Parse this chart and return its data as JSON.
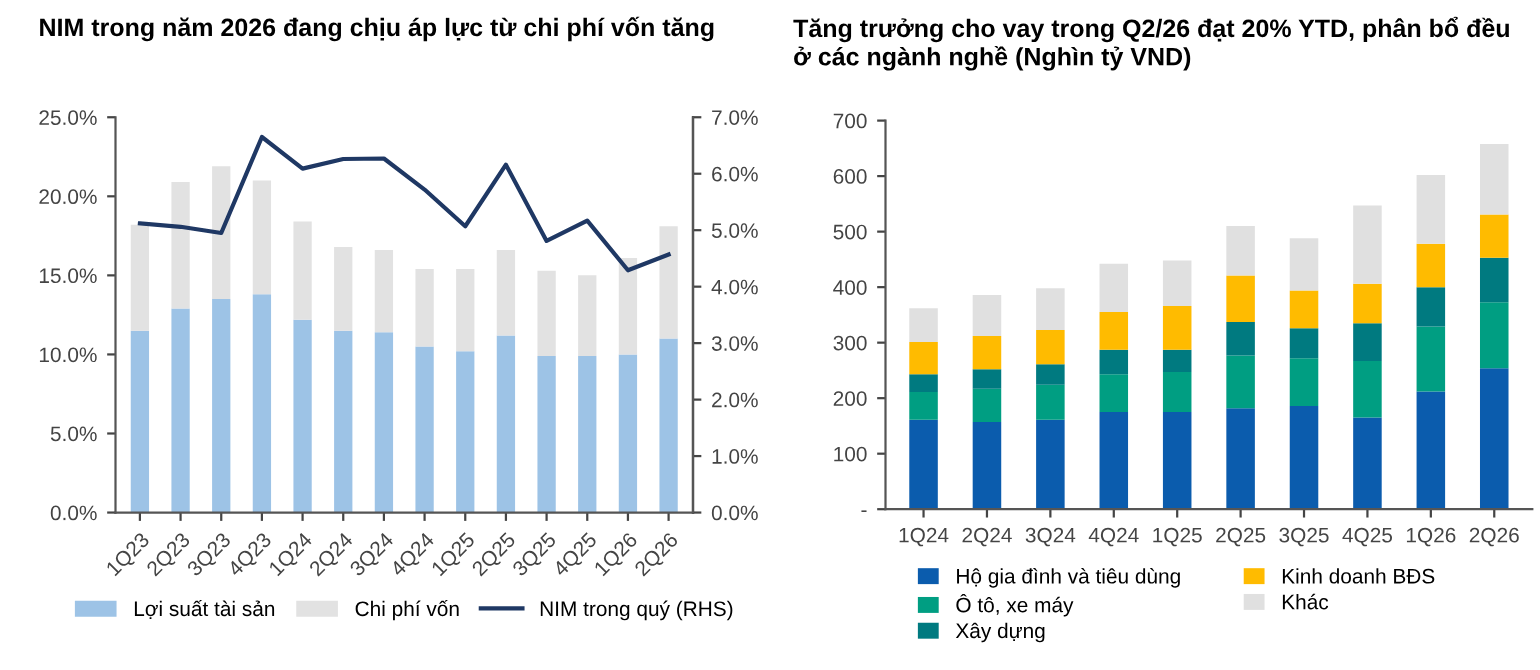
{
  "chart_data": [
    {
      "type": "bar",
      "title": "NIM trong năm 2026 đang chịu áp lực từ chi phí vốn tăng",
      "stacked": true,
      "categories": [
        "1Q23",
        "2Q23",
        "3Q23",
        "4Q23",
        "1Q24",
        "2Q24",
        "3Q24",
        "4Q24",
        "1Q25",
        "2Q25",
        "3Q25",
        "4Q25",
        "1Q26",
        "2Q26"
      ],
      "series": [
        {
          "name": "Lợi suất tài sản",
          "color": "#9dc3e6",
          "values": [
            11.5,
            12.9,
            13.5,
            13.8,
            12.2,
            11.5,
            11.4,
            10.5,
            10.2,
            11.2,
            9.9,
            9.9,
            10.0,
            11.0
          ]
        },
        {
          "name": "Chi phí vốn",
          "color": "#e2e2e2",
          "values": [
            6.7,
            8.0,
            8.4,
            7.2,
            6.2,
            5.3,
            5.2,
            4.9,
            5.2,
            5.4,
            5.4,
            5.1,
            6.1,
            7.1
          ]
        },
        {
          "name": "NIM trong quý (RHS)",
          "type": "line",
          "axis": "y2",
          "color": "#1f3864",
          "values": [
            5.12,
            5.06,
            4.95,
            6.65,
            6.09,
            6.26,
            6.27,
            5.72,
            5.07,
            6.16,
            4.81,
            5.17,
            4.29,
            4.57
          ]
        }
      ],
      "ylim": [
        0,
        25
      ],
      "yticks": [
        {
          "value": 0,
          "label": "0.0%"
        },
        {
          "value": 5,
          "label": "5.0%"
        },
        {
          "value": 10,
          "label": "10.0%"
        },
        {
          "value": 15,
          "label": "15.0%"
        },
        {
          "value": 20,
          "label": "20.0%"
        },
        {
          "value": 25,
          "label": "25.0%"
        }
      ],
      "y2lim": [
        0,
        7
      ],
      "y2ticks": [
        {
          "value": 0,
          "label": "0.0%"
        },
        {
          "value": 1,
          "label": "1.0%"
        },
        {
          "value": 2,
          "label": "2.0%"
        },
        {
          "value": 3,
          "label": "3.0%"
        },
        {
          "value": 4,
          "label": "4.0%"
        },
        {
          "value": 5,
          "label": "5.0%"
        },
        {
          "value": 6,
          "label": "6.0%"
        },
        {
          "value": 7,
          "label": "7.0%"
        }
      ],
      "legend": "bottom",
      "grid": false
    },
    {
      "type": "bar",
      "title": "Tăng trưởng cho vay trong Q2/26 đạt 20% YTD, phân bổ đều ở các ngành nghề (Nghìn tỷ VND)",
      "stacked": true,
      "categories": [
        "1Q24",
        "2Q24",
        "3Q24",
        "4Q24",
        "1Q25",
        "2Q25",
        "3Q25",
        "4Q25",
        "1Q26",
        "2Q26"
      ],
      "series": [
        {
          "name": "Hộ gia đình và tiêu dùng",
          "color": "#0b5cad",
          "values": [
            161,
            157,
            161,
            175,
            175,
            182,
            186,
            165,
            212,
            254
          ]
        },
        {
          "name": "Ô tô, xe máy",
          "color": "#009e82",
          "values": [
            50,
            60,
            63,
            68,
            72,
            95,
            86,
            102,
            117,
            119
          ]
        },
        {
          "name": "Xây dựng",
          "color": "#007a80",
          "values": [
            32,
            35,
            37,
            44,
            40,
            60,
            54,
            68,
            71,
            80
          ]
        },
        {
          "name": "Kinh doanh BĐS",
          "color": "#ffbb00",
          "values": [
            58,
            60,
            62,
            68,
            79,
            84,
            68,
            71,
            78,
            78
          ]
        },
        {
          "name": "Khác",
          "color": "#e0e0e0",
          "values": [
            61,
            74,
            75,
            87,
            82,
            89,
            94,
            141,
            124,
            127
          ]
        }
      ],
      "ylim": [
        0,
        700
      ],
      "yticks": [
        {
          "value": 0,
          "label": "-"
        },
        100,
        200,
        300,
        400,
        500,
        600,
        700
      ],
      "legend": "bottom",
      "grid": false
    }
  ]
}
